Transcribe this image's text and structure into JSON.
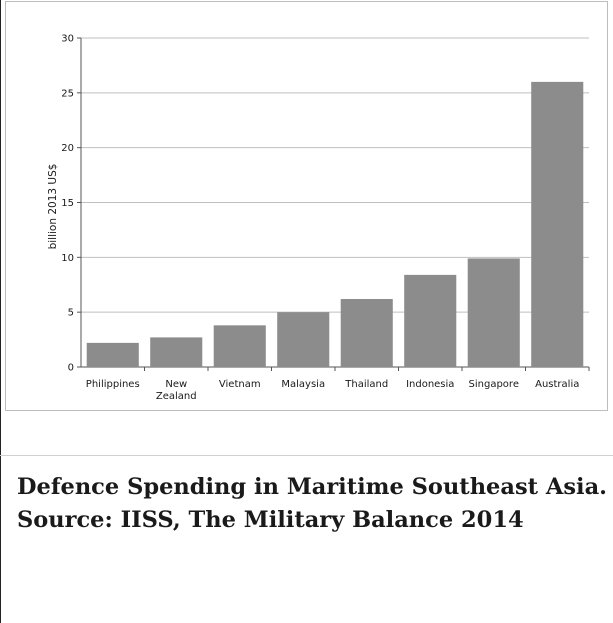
{
  "chart_data": {
    "type": "bar",
    "categories": [
      [
        "Philippines"
      ],
      [
        "New",
        "Zealand"
      ],
      [
        "Vietnam"
      ],
      [
        "Malaysia"
      ],
      [
        "Thailand"
      ],
      [
        "Indonesia"
      ],
      [
        "Singapore"
      ],
      [
        "Australia"
      ]
    ],
    "values": [
      2.2,
      2.7,
      3.8,
      5.0,
      6.2,
      8.4,
      9.9,
      26.0
    ],
    "ylabel": "billion 2013 US$",
    "xlabel": "",
    "ylim": [
      0,
      30
    ],
    "yticks": [
      0,
      5,
      10,
      15,
      20,
      25,
      30
    ],
    "grid": true,
    "legend": "none",
    "bar_color": "#8c8c8c",
    "grid_color": "#bfbfbf"
  },
  "caption": {
    "text": "Defence Spending in Maritime Southeast Asia. Source: IISS, The Military Balance 2014"
  }
}
